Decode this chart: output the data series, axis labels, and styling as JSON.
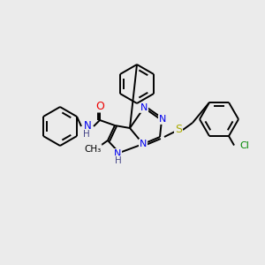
{
  "bg_color": "#ebebeb",
  "atom_colors": {
    "N": "#0000ee",
    "O": "#ee0000",
    "S": "#aaaa00",
    "Cl": "#008800",
    "C": "#000000",
    "H": "#444488"
  },
  "bond_color": "#000000"
}
